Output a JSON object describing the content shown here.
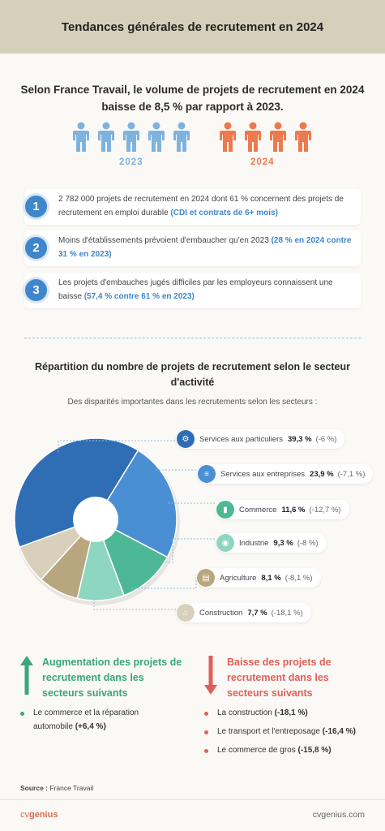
{
  "header": {
    "title": "Tendances générales de recrutement en 2024"
  },
  "intro": {
    "text": "Selon France Travail, le volume de projets de recrutement en 2024 baisse de 8,5 % par rapport à 2023."
  },
  "years": {
    "y2023": "2023",
    "y2024": "2024",
    "color2023": "#7fb3df",
    "color2024": "#ec7a4e"
  },
  "stats": [
    {
      "num": "1",
      "text": "2 782 000 projets de recrutement en 2024 dont 61 % concernent des projets de recrutement en emploi durable ",
      "highlight": "(CDI et contrats de 6+ mois)"
    },
    {
      "num": "2",
      "text": "Moins d'établissements prévoient d'embaucher qu'en 2023 ",
      "highlight": "(28 % en 2024 contre 31 % en 2023)"
    },
    {
      "num": "3",
      "text": "Les projets d'embauches jugés difficiles par les employeurs connaissent une baisse ",
      "highlight": "(57,4 % contre 61 % en 2023)"
    }
  ],
  "section": {
    "title": "Répartition du nombre de projets de recrutement selon le secteur d'activité",
    "subtitle": "Des disparités importantes dans les recrutements selon les secteurs :"
  },
  "chart_data": {
    "type": "pie",
    "donut": true,
    "categories": [
      "Services aux particuliers",
      "Services aux entreprises",
      "Commerce",
      "Industrie",
      "Agriculture",
      "Construction"
    ],
    "values": [
      39.3,
      23.9,
      11.6,
      9.3,
      8.1,
      7.7
    ],
    "labels": [
      "39,3 %",
      "23,9 %",
      "11,6 %",
      "9,3 %",
      "8,1 %",
      "7,7 %"
    ],
    "changes": [
      "(-6 %)",
      "(-7,1 %)",
      "(-12,7 %)",
      "(-8 %)",
      "(-8,1 %)",
      "(-18,1 %)"
    ],
    "colors": [
      "#2f6db5",
      "#4a8fd3",
      "#4db895",
      "#8fd6c0",
      "#b7a67e",
      "#d8d0ba"
    ],
    "icon_names": [
      "tag-icon",
      "handshake-icon",
      "chart-icon",
      "factory-icon",
      "tractor-icon",
      "helmet-icon"
    ]
  },
  "trend_up": {
    "title": "Augmentation des projets de recrutement dans les secteurs suivants",
    "color": "#3aa57f",
    "items": [
      {
        "text": "Le commerce et la réparation automobile",
        "value": "(+6,4 %)"
      }
    ]
  },
  "trend_down": {
    "title": "Baisse des projets de recrutement dans les secteurs suivants",
    "color": "#e05f5a",
    "items": [
      {
        "text": "La construction",
        "value": "(-18,1 %)"
      },
      {
        "text": "Le transport et l'entreposage",
        "value": "(-16,4 %)"
      },
      {
        "text": "Le commerce de gros",
        "value": "(-15,8 %)"
      }
    ]
  },
  "footer": {
    "source_label": "Source :",
    "source": "France Travail",
    "brand_a": "cv",
    "brand_b": "genius",
    "url": "cvgenius.com"
  }
}
